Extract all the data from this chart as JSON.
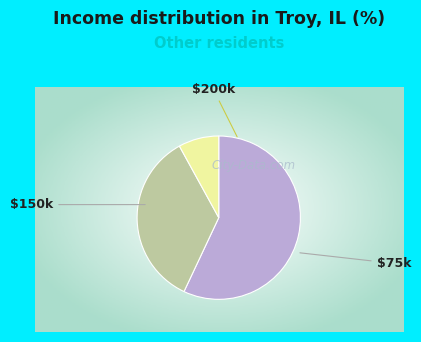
{
  "title": "Income distribution in Troy, IL (%)",
  "subtitle": "Other residents",
  "title_color": "#1a1a1a",
  "subtitle_color": "#00cccc",
  "background_outer": "#00eeff",
  "slices": [
    {
      "label": "$75k",
      "value": 57,
      "color": "#bbaad8"
    },
    {
      "label": "$150k",
      "value": 35,
      "color": "#bdc9a0"
    },
    {
      "label": "$200k",
      "value": 8,
      "color": "#f0f5a0"
    }
  ],
  "startangle": 90,
  "watermark": "City-Data.com",
  "chart_bg_inner": "#ffffff",
  "chart_bg_outer": "#aaddcc"
}
